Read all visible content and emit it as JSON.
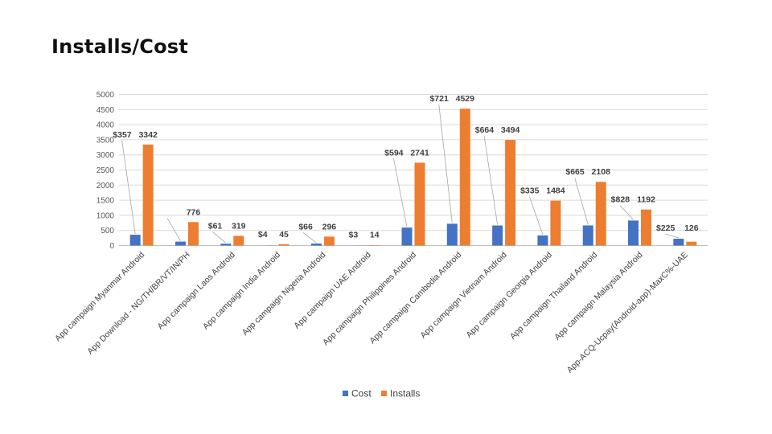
{
  "slide": {
    "title": "Installs/Cost"
  },
  "chart_data": {
    "type": "bar",
    "title": "",
    "xlabel": "",
    "ylabel": "",
    "ylim": [
      0,
      5000
    ],
    "yticks": [
      0,
      500,
      1000,
      1500,
      2000,
      2500,
      3000,
      3500,
      4000,
      4500,
      5000
    ],
    "grid": true,
    "legend_position": "bottom",
    "categories": [
      "App campaign Myanmar Android",
      "App Download - NG/TH/BR/VT/IN/PH",
      "App campaign Laos Android",
      "App campaign India Android",
      "App campaign Nigeria Android",
      "App campaign UAE Android",
      "App campaign Philippines Android",
      "App campaign Cambodia Android",
      "App campaign Vietnam Android",
      "App campaign Georgia Android",
      "App campaign Thailand Android",
      "App campaign Malaysia Android",
      "App-ACQ-Ucpay(Android-app)-MaxC%-UAE"
    ],
    "series": [
      {
        "name": "Cost",
        "color": "#4472C4",
        "values": [
          357,
          130,
          61,
          4,
          66,
          3,
          594,
          721,
          664,
          335,
          665,
          828,
          225
        ],
        "labels": [
          "$357",
          "",
          "$61",
          "$4",
          "$66",
          "$3",
          "$594",
          "$721",
          "$664",
          "$335",
          "$665",
          "$828",
          "$225"
        ]
      },
      {
        "name": "Installs",
        "color": "#ED7D31",
        "values": [
          3342,
          776,
          319,
          45,
          296,
          14,
          2741,
          4529,
          3494,
          1484,
          2108,
          1192,
          126
        ],
        "labels": [
          "3342",
          "776",
          "319",
          "45",
          "296",
          "14",
          "2741",
          "4529",
          "3494",
          "1484",
          "2108",
          "1192",
          "126"
        ]
      }
    ]
  }
}
